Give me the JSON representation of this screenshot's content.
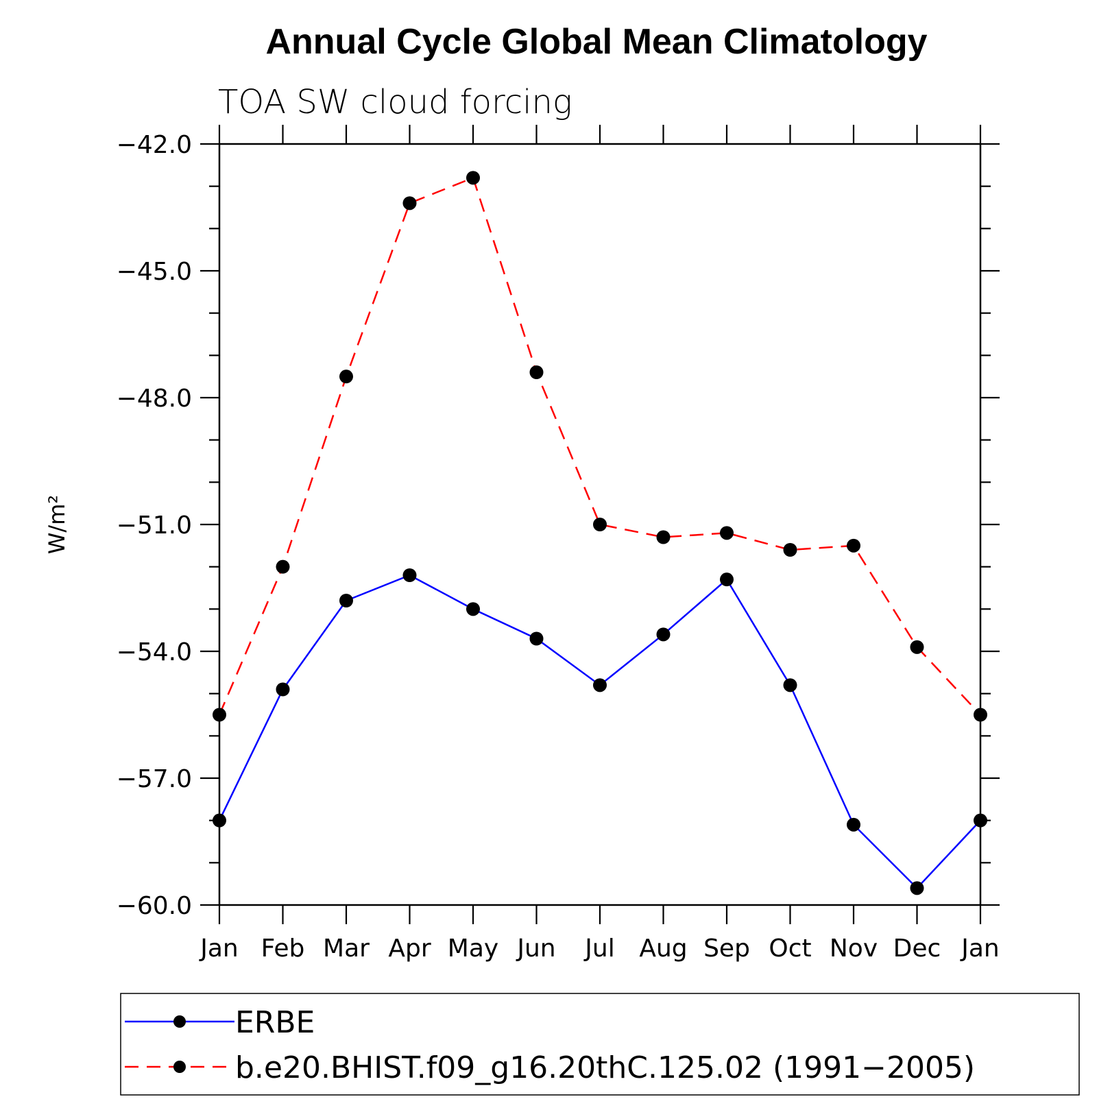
{
  "chart_data": {
    "type": "line",
    "title": "Annual Cycle Global Mean Climatology",
    "subtitle": "TOA SW cloud forcing",
    "xlabel": "",
    "ylabel": "W/m²",
    "categories": [
      "Jan",
      "Feb",
      "Mar",
      "Apr",
      "May",
      "Jun",
      "Jul",
      "Aug",
      "Sep",
      "Oct",
      "Nov",
      "Dec",
      "Jan"
    ],
    "ylim": [
      -60.0,
      -42.0
    ],
    "yticks": [
      -42.0,
      -45.0,
      -48.0,
      -51.0,
      -54.0,
      -57.0,
      -60.0
    ],
    "ytick_labels": [
      "−42.0",
      "−45.0",
      "−48.0",
      "−51.0",
      "−54.0",
      "−57.0",
      "−60.0"
    ],
    "series": [
      {
        "name": "ERBE",
        "color": "#0000ff",
        "dash": "solid",
        "values": [
          -58.0,
          -54.9,
          -52.8,
          -52.2,
          -53.0,
          -53.7,
          -54.8,
          -53.6,
          -52.3,
          -54.8,
          -58.1,
          -59.6,
          -58.0
        ]
      },
      {
        "name": "b.e20.BHIST.f09_g16.20thC.125.02 (1991−2005)",
        "color": "#ff0000",
        "dash": "dashed",
        "values": [
          -55.5,
          -52.0,
          -47.5,
          -43.4,
          -42.8,
          -47.4,
          -51.0,
          -51.3,
          -51.2,
          -51.6,
          -51.5,
          -53.9,
          -55.5
        ]
      }
    ],
    "legend": {
      "position": "bottom",
      "entries": [
        "ERBE",
        "b.e20.BHIST.f09_g16.20thC.125.02 (1991−2005)"
      ]
    }
  }
}
